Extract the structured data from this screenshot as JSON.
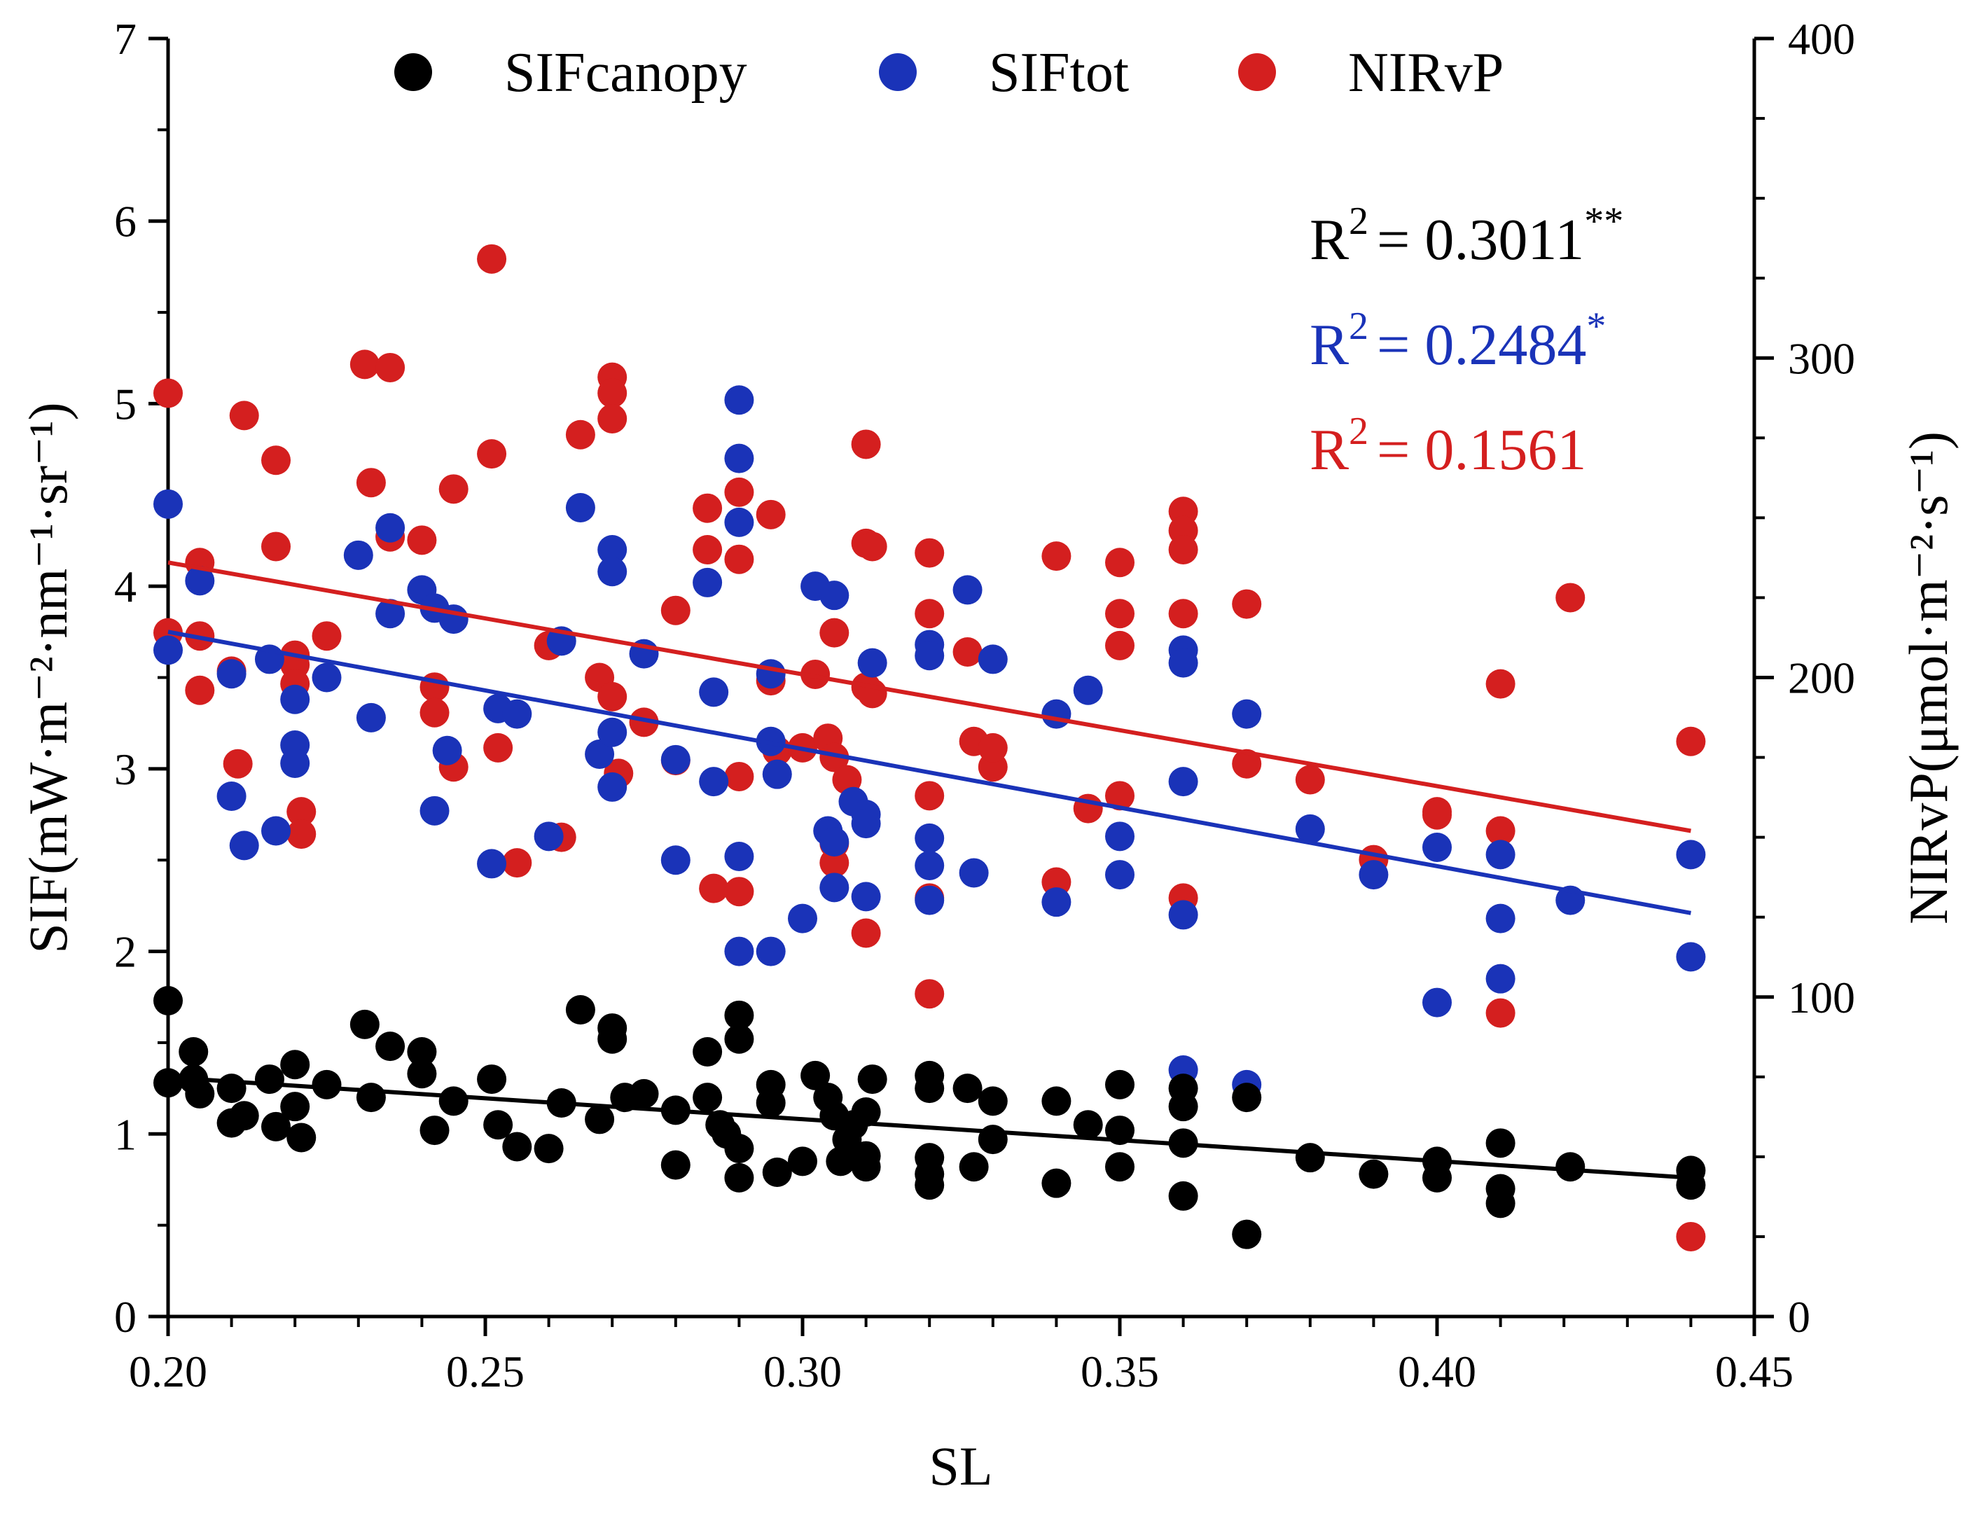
{
  "chart_data": {
    "type": "scatter",
    "xlabel": "SL",
    "ylabel": "SIF(mW·m⁻²·nm⁻¹·sr⁻¹)",
    "y2label": "NIRvP(μmol·m⁻²·s⁻¹)",
    "xlim": [
      0.2,
      0.45
    ],
    "ylim": [
      0,
      7
    ],
    "y2lim": [
      0,
      400
    ],
    "xticks": [
      "0.20",
      "0.25",
      "0.30",
      "0.35",
      "0.40",
      "0.45"
    ],
    "yticks": [
      "0",
      "1",
      "2",
      "3",
      "4",
      "5",
      "6",
      "7"
    ],
    "y2ticks": [
      "0",
      "100",
      "200",
      "300",
      "400"
    ],
    "legend_position": "top",
    "series": [
      {
        "name": "SIFcanopy",
        "color": "#000000",
        "axis": "left",
        "r2_label": "R",
        "r2_value": "= 0.3011",
        "r2_sig": "**",
        "fit": {
          "x": [
            0.2,
            0.44
          ],
          "y": [
            1.31,
            0.76
          ]
        },
        "points": [
          [
            0.2,
            1.73
          ],
          [
            0.2,
            1.28
          ],
          [
            0.204,
            1.45
          ],
          [
            0.204,
            1.3
          ],
          [
            0.205,
            1.22
          ],
          [
            0.21,
            1.25
          ],
          [
            0.21,
            1.06
          ],
          [
            0.212,
            1.1
          ],
          [
            0.216,
            1.3
          ],
          [
            0.217,
            1.04
          ],
          [
            0.22,
            1.38
          ],
          [
            0.22,
            1.15
          ],
          [
            0.221,
            0.98
          ],
          [
            0.225,
            1.27
          ],
          [
            0.231,
            1.6
          ],
          [
            0.232,
            1.2
          ],
          [
            0.235,
            1.48
          ],
          [
            0.24,
            1.45
          ],
          [
            0.24,
            1.33
          ],
          [
            0.242,
            1.02
          ],
          [
            0.245,
            1.18
          ],
          [
            0.251,
            1.3
          ],
          [
            0.252,
            1.05
          ],
          [
            0.255,
            0.93
          ],
          [
            0.26,
            0.92
          ],
          [
            0.262,
            1.17
          ],
          [
            0.265,
            1.68
          ],
          [
            0.268,
            1.08
          ],
          [
            0.27,
            1.58
          ],
          [
            0.27,
            1.52
          ],
          [
            0.272,
            1.2
          ],
          [
            0.275,
            1.22
          ],
          [
            0.28,
            1.13
          ],
          [
            0.28,
            0.83
          ],
          [
            0.285,
            1.45
          ],
          [
            0.285,
            1.2
          ],
          [
            0.287,
            1.05
          ],
          [
            0.288,
            1.0
          ],
          [
            0.29,
            1.65
          ],
          [
            0.29,
            1.52
          ],
          [
            0.29,
            0.92
          ],
          [
            0.29,
            0.76
          ],
          [
            0.295,
            1.27
          ],
          [
            0.295,
            1.17
          ],
          [
            0.296,
            0.79
          ],
          [
            0.3,
            0.85
          ],
          [
            0.302,
            1.32
          ],
          [
            0.304,
            1.2
          ],
          [
            0.305,
            1.1
          ],
          [
            0.306,
            0.85
          ],
          [
            0.307,
            0.97
          ],
          [
            0.308,
            1.05
          ],
          [
            0.31,
            1.12
          ],
          [
            0.31,
            0.88
          ],
          [
            0.31,
            0.82
          ],
          [
            0.311,
            1.3
          ],
          [
            0.32,
            1.32
          ],
          [
            0.32,
            1.25
          ],
          [
            0.32,
            0.87
          ],
          [
            0.32,
            0.78
          ],
          [
            0.32,
            0.72
          ],
          [
            0.326,
            1.25
          ],
          [
            0.327,
            0.82
          ],
          [
            0.33,
            1.18
          ],
          [
            0.33,
            0.97
          ],
          [
            0.34,
            1.18
          ],
          [
            0.34,
            0.73
          ],
          [
            0.345,
            1.05
          ],
          [
            0.35,
            1.27
          ],
          [
            0.35,
            1.02
          ],
          [
            0.35,
            0.82
          ],
          [
            0.36,
            1.25
          ],
          [
            0.36,
            1.15
          ],
          [
            0.36,
            0.95
          ],
          [
            0.36,
            0.66
          ],
          [
            0.37,
            1.2
          ],
          [
            0.37,
            0.45
          ],
          [
            0.38,
            0.87
          ],
          [
            0.39,
            0.78
          ],
          [
            0.4,
            0.85
          ],
          [
            0.4,
            0.76
          ],
          [
            0.41,
            0.95
          ],
          [
            0.41,
            0.7
          ],
          [
            0.41,
            0.62
          ],
          [
            0.421,
            0.82
          ],
          [
            0.44,
            0.8
          ],
          [
            0.44,
            0.72
          ]
        ]
      },
      {
        "name": "SIFtot",
        "color": "#1a33b8",
        "axis": "left",
        "r2_label": "R",
        "r2_value": "= 0.2484",
        "r2_sig": "*",
        "fit": {
          "x": [
            0.2,
            0.44
          ],
          "y": [
            3.75,
            2.21
          ]
        },
        "points": [
          [
            0.2,
            4.45
          ],
          [
            0.2,
            3.65
          ],
          [
            0.205,
            4.03
          ],
          [
            0.21,
            3.52
          ],
          [
            0.21,
            2.85
          ],
          [
            0.212,
            2.58
          ],
          [
            0.216,
            3.6
          ],
          [
            0.217,
            2.66
          ],
          [
            0.22,
            3.38
          ],
          [
            0.22,
            3.13
          ],
          [
            0.22,
            3.03
          ],
          [
            0.225,
            3.5
          ],
          [
            0.23,
            4.17
          ],
          [
            0.232,
            3.28
          ],
          [
            0.235,
            4.32
          ],
          [
            0.235,
            3.85
          ],
          [
            0.24,
            3.98
          ],
          [
            0.242,
            3.88
          ],
          [
            0.242,
            2.77
          ],
          [
            0.244,
            3.1
          ],
          [
            0.245,
            3.82
          ],
          [
            0.251,
            2.48
          ],
          [
            0.252,
            3.33
          ],
          [
            0.255,
            3.3
          ],
          [
            0.26,
            2.63
          ],
          [
            0.262,
            3.7
          ],
          [
            0.265,
            4.43
          ],
          [
            0.268,
            3.08
          ],
          [
            0.27,
            4.2
          ],
          [
            0.27,
            4.08
          ],
          [
            0.27,
            3.2
          ],
          [
            0.27,
            2.9
          ],
          [
            0.275,
            3.63
          ],
          [
            0.28,
            3.05
          ],
          [
            0.28,
            2.5
          ],
          [
            0.285,
            4.02
          ],
          [
            0.286,
            3.42
          ],
          [
            0.286,
            2.93
          ],
          [
            0.29,
            5.02
          ],
          [
            0.29,
            4.7
          ],
          [
            0.29,
            4.35
          ],
          [
            0.29,
            2.52
          ],
          [
            0.29,
            2.0
          ],
          [
            0.295,
            3.52
          ],
          [
            0.295,
            3.15
          ],
          [
            0.296,
            2.97
          ],
          [
            0.295,
            2.0
          ],
          [
            0.3,
            2.18
          ],
          [
            0.302,
            4.0
          ],
          [
            0.304,
            2.66
          ],
          [
            0.305,
            3.95
          ],
          [
            0.305,
            2.6
          ],
          [
            0.305,
            2.35
          ],
          [
            0.308,
            2.82
          ],
          [
            0.31,
            2.75
          ],
          [
            0.31,
            2.7
          ],
          [
            0.31,
            2.3
          ],
          [
            0.311,
            3.58
          ],
          [
            0.32,
            3.68
          ],
          [
            0.32,
            3.62
          ],
          [
            0.32,
            2.62
          ],
          [
            0.32,
            2.47
          ],
          [
            0.32,
            2.28
          ],
          [
            0.326,
            3.98
          ],
          [
            0.327,
            2.43
          ],
          [
            0.33,
            3.6
          ],
          [
            0.34,
            3.3
          ],
          [
            0.34,
            2.27
          ],
          [
            0.345,
            3.43
          ],
          [
            0.35,
            2.63
          ],
          [
            0.35,
            2.42
          ],
          [
            0.36,
            3.65
          ],
          [
            0.36,
            3.58
          ],
          [
            0.36,
            2.93
          ],
          [
            0.36,
            2.2
          ],
          [
            0.36,
            1.35
          ],
          [
            0.37,
            3.3
          ],
          [
            0.37,
            1.27
          ],
          [
            0.38,
            2.67
          ],
          [
            0.39,
            2.42
          ],
          [
            0.4,
            2.57
          ],
          [
            0.4,
            1.72
          ],
          [
            0.41,
            2.53
          ],
          [
            0.41,
            2.18
          ],
          [
            0.41,
            1.85
          ],
          [
            0.421,
            2.28
          ],
          [
            0.44,
            2.53
          ],
          [
            0.44,
            1.97
          ]
        ]
      },
      {
        "name": "NIRvP",
        "color": "#d41f1f",
        "axis": "right",
        "r2_label": "R",
        "r2_value": "= 0.1561",
        "r2_sig": "",
        "fit": {
          "x": [
            0.2,
            0.44
          ],
          "y": [
            236,
            152
          ]
        },
        "points": [
          [
            0.2,
            289
          ],
          [
            0.2,
            214
          ],
          [
            0.205,
            236
          ],
          [
            0.205,
            213
          ],
          [
            0.205,
            196
          ],
          [
            0.21,
            202
          ],
          [
            0.211,
            173
          ],
          [
            0.212,
            282
          ],
          [
            0.217,
            268
          ],
          [
            0.217,
            241
          ],
          [
            0.22,
            207
          ],
          [
            0.22,
            204
          ],
          [
            0.22,
            198
          ],
          [
            0.221,
            158
          ],
          [
            0.221,
            151
          ],
          [
            0.225,
            213
          ],
          [
            0.231,
            298
          ],
          [
            0.232,
            261
          ],
          [
            0.235,
            297
          ],
          [
            0.235,
            244
          ],
          [
            0.24,
            243
          ],
          [
            0.242,
            197
          ],
          [
            0.242,
            189
          ],
          [
            0.245,
            259
          ],
          [
            0.245,
            172
          ],
          [
            0.251,
            331
          ],
          [
            0.251,
            270
          ],
          [
            0.252,
            178
          ],
          [
            0.255,
            142
          ],
          [
            0.26,
            210
          ],
          [
            0.262,
            150
          ],
          [
            0.265,
            276
          ],
          [
            0.268,
            200
          ],
          [
            0.27,
            294
          ],
          [
            0.27,
            289
          ],
          [
            0.27,
            281
          ],
          [
            0.27,
            194
          ],
          [
            0.271,
            170
          ],
          [
            0.275,
            186
          ],
          [
            0.28,
            221
          ],
          [
            0.28,
            174
          ],
          [
            0.285,
            253
          ],
          [
            0.285,
            240
          ],
          [
            0.286,
            134
          ],
          [
            0.29,
            258
          ],
          [
            0.29,
            237
          ],
          [
            0.29,
            169
          ],
          [
            0.29,
            133
          ],
          [
            0.295,
            251
          ],
          [
            0.295,
            199
          ],
          [
            0.296,
            177
          ],
          [
            0.3,
            178
          ],
          [
            0.302,
            201
          ],
          [
            0.304,
            181
          ],
          [
            0.305,
            214
          ],
          [
            0.305,
            175
          ],
          [
            0.305,
            148
          ],
          [
            0.305,
            142
          ],
          [
            0.307,
            168
          ],
          [
            0.31,
            273
          ],
          [
            0.31,
            242
          ],
          [
            0.31,
            197
          ],
          [
            0.31,
            120
          ],
          [
            0.311,
            241
          ],
          [
            0.311,
            195
          ],
          [
            0.32,
            239
          ],
          [
            0.32,
            220
          ],
          [
            0.32,
            163
          ],
          [
            0.32,
            131
          ],
          [
            0.32,
            101
          ],
          [
            0.326,
            208
          ],
          [
            0.327,
            180
          ],
          [
            0.33,
            172
          ],
          [
            0.33,
            178
          ],
          [
            0.34,
            238
          ],
          [
            0.34,
            136
          ],
          [
            0.345,
            159
          ],
          [
            0.35,
            236
          ],
          [
            0.35,
            220
          ],
          [
            0.35,
            210
          ],
          [
            0.35,
            163
          ],
          [
            0.36,
            252
          ],
          [
            0.36,
            246
          ],
          [
            0.36,
            240
          ],
          [
            0.36,
            220
          ],
          [
            0.36,
            131
          ],
          [
            0.37,
            223
          ],
          [
            0.37,
            173
          ],
          [
            0.38,
            168
          ],
          [
            0.39,
            143
          ],
          [
            0.4,
            158
          ],
          [
            0.4,
            157
          ],
          [
            0.41,
            198
          ],
          [
            0.41,
            152
          ],
          [
            0.41,
            95
          ],
          [
            0.421,
            225
          ],
          [
            0.44,
            180
          ],
          [
            0.44,
            25
          ]
        ]
      }
    ]
  }
}
